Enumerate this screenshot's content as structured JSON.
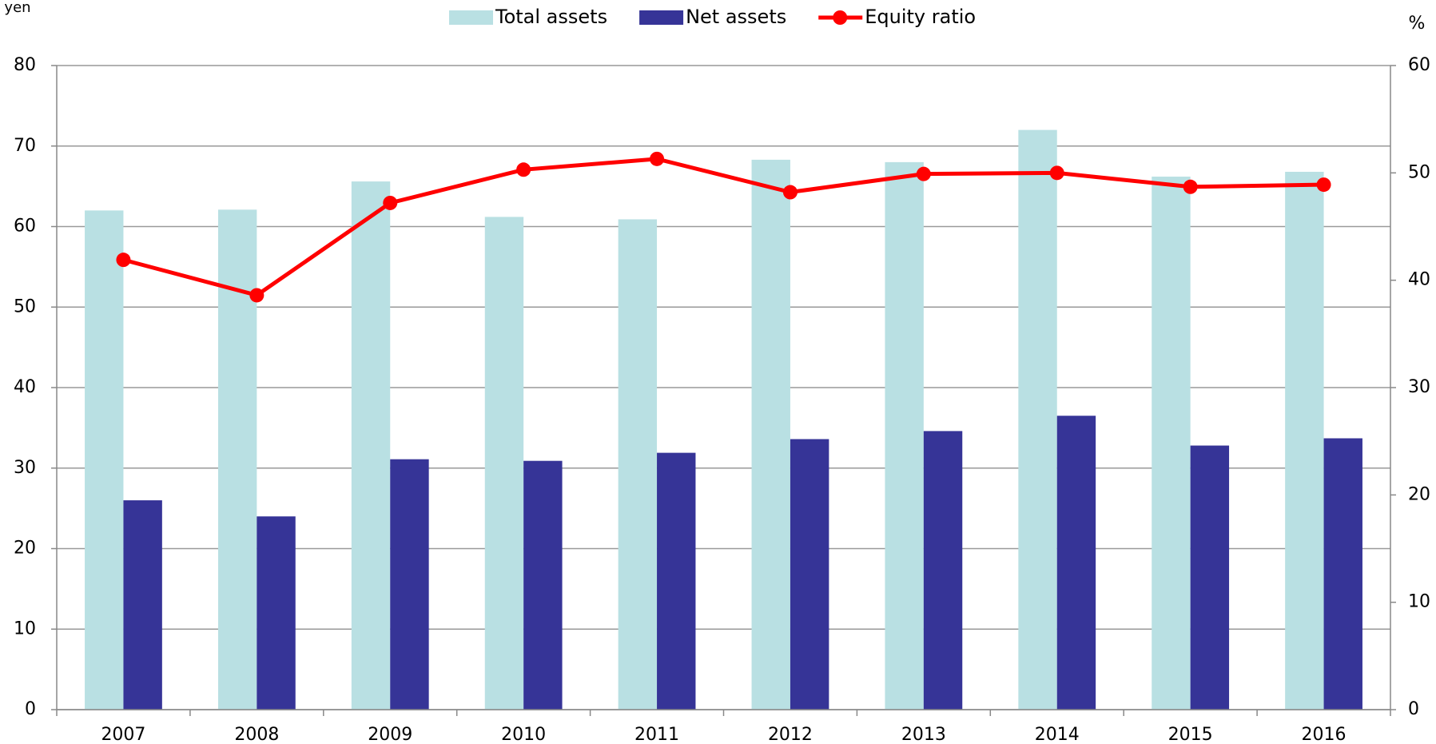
{
  "chart_data": {
    "type": "bar_line",
    "y_label": "yen",
    "y2_label": "%",
    "categories": [
      "2007",
      "2008",
      "2009",
      "2010",
      "2011",
      "2012",
      "2013",
      "2014",
      "2015",
      "2016"
    ],
    "series": [
      {
        "name": "Total assets",
        "type": "bar",
        "color": "#b9e0e3",
        "values": [
          62.0,
          62.1,
          65.6,
          61.2,
          60.9,
          68.3,
          68.0,
          72.0,
          66.2,
          66.8
        ]
      },
      {
        "name": "Net assets",
        "type": "bar",
        "color": "#363497",
        "values": [
          26.0,
          24.0,
          31.1,
          30.9,
          31.9,
          33.6,
          34.6,
          36.5,
          32.8,
          33.7
        ]
      },
      {
        "name": "Equity ratio",
        "type": "line",
        "axis": "y2",
        "color": "#ff0000",
        "values": [
          41.9,
          38.6,
          47.2,
          50.3,
          51.3,
          48.2,
          49.9,
          50.0,
          48.7,
          48.9
        ]
      }
    ],
    "ylim": [
      0,
      80
    ],
    "yticks": [
      0,
      10,
      20,
      30,
      40,
      50,
      60,
      70,
      80
    ],
    "y2lim": [
      0,
      60
    ],
    "y2ticks": [
      0,
      10,
      20,
      30,
      40,
      50,
      60
    ],
    "grid": true,
    "legend": "top"
  }
}
